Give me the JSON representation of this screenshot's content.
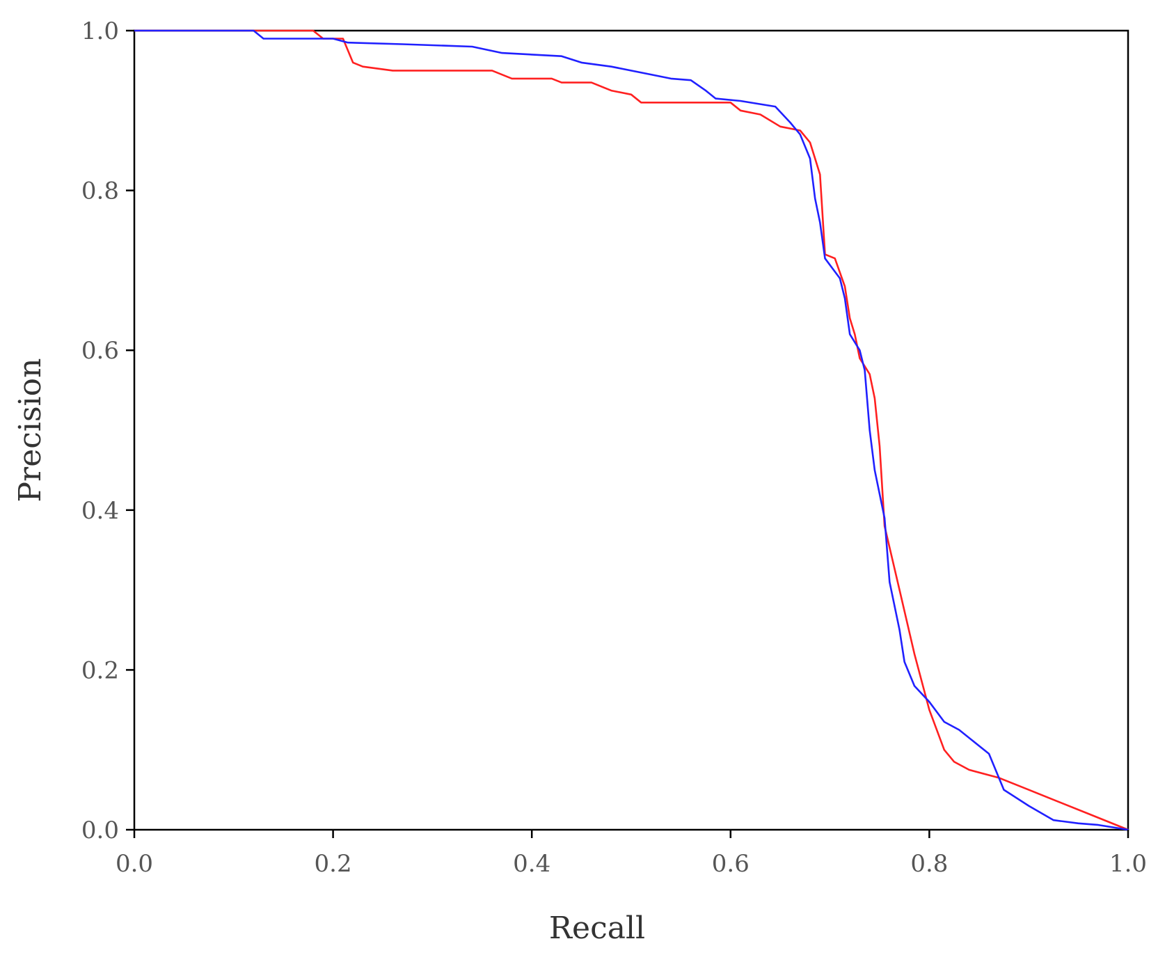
{
  "chart_data": {
    "type": "line",
    "title": "",
    "xlabel": "Recall",
    "ylabel": "Precision",
    "xlim": [
      0,
      1
    ],
    "ylim": [
      0,
      1
    ],
    "grid": false,
    "legend": "none",
    "x_ticks": [
      "0.0",
      "0.2",
      "0.4",
      "0.6",
      "0.8",
      "1.0"
    ],
    "y_ticks": [
      "0.0",
      "0.2",
      "0.4",
      "0.6",
      "0.8",
      "1.0"
    ],
    "series": [
      {
        "color": "#ff2020",
        "points": [
          [
            0.0,
            1.0
          ],
          [
            0.18,
            1.0
          ],
          [
            0.19,
            0.99
          ],
          [
            0.21,
            0.99
          ],
          [
            0.22,
            0.96
          ],
          [
            0.23,
            0.955
          ],
          [
            0.26,
            0.95
          ],
          [
            0.36,
            0.95
          ],
          [
            0.38,
            0.94
          ],
          [
            0.42,
            0.94
          ],
          [
            0.43,
            0.935
          ],
          [
            0.46,
            0.935
          ],
          [
            0.48,
            0.925
          ],
          [
            0.5,
            0.92
          ],
          [
            0.51,
            0.91
          ],
          [
            0.6,
            0.91
          ],
          [
            0.61,
            0.9
          ],
          [
            0.63,
            0.895
          ],
          [
            0.65,
            0.88
          ],
          [
            0.67,
            0.875
          ],
          [
            0.68,
            0.86
          ],
          [
            0.685,
            0.84
          ],
          [
            0.69,
            0.82
          ],
          [
            0.695,
            0.72
          ],
          [
            0.705,
            0.715
          ],
          [
            0.715,
            0.68
          ],
          [
            0.72,
            0.64
          ],
          [
            0.725,
            0.62
          ],
          [
            0.73,
            0.59
          ],
          [
            0.74,
            0.57
          ],
          [
            0.745,
            0.54
          ],
          [
            0.75,
            0.48
          ],
          [
            0.755,
            0.38
          ],
          [
            0.77,
            0.3
          ],
          [
            0.785,
            0.22
          ],
          [
            0.8,
            0.15
          ],
          [
            0.815,
            0.1
          ],
          [
            0.825,
            0.085
          ],
          [
            0.84,
            0.075
          ],
          [
            0.87,
            0.065
          ],
          [
            0.9,
            0.05
          ],
          [
            0.93,
            0.035
          ],
          [
            0.96,
            0.02
          ],
          [
            1.0,
            0.0
          ]
        ]
      },
      {
        "color": "#2020ff",
        "points": [
          [
            0.0,
            1.0
          ],
          [
            0.12,
            1.0
          ],
          [
            0.13,
            0.99
          ],
          [
            0.2,
            0.99
          ],
          [
            0.215,
            0.985
          ],
          [
            0.27,
            0.983
          ],
          [
            0.34,
            0.98
          ],
          [
            0.37,
            0.972
          ],
          [
            0.4,
            0.97
          ],
          [
            0.43,
            0.968
          ],
          [
            0.45,
            0.96
          ],
          [
            0.48,
            0.955
          ],
          [
            0.52,
            0.945
          ],
          [
            0.54,
            0.94
          ],
          [
            0.56,
            0.938
          ],
          [
            0.575,
            0.925
          ],
          [
            0.585,
            0.915
          ],
          [
            0.61,
            0.912
          ],
          [
            0.645,
            0.905
          ],
          [
            0.66,
            0.885
          ],
          [
            0.67,
            0.87
          ],
          [
            0.68,
            0.84
          ],
          [
            0.685,
            0.79
          ],
          [
            0.69,
            0.76
          ],
          [
            0.695,
            0.715
          ],
          [
            0.71,
            0.69
          ],
          [
            0.715,
            0.665
          ],
          [
            0.72,
            0.62
          ],
          [
            0.73,
            0.6
          ],
          [
            0.735,
            0.575
          ],
          [
            0.74,
            0.5
          ],
          [
            0.745,
            0.45
          ],
          [
            0.755,
            0.39
          ],
          [
            0.76,
            0.31
          ],
          [
            0.77,
            0.25
          ],
          [
            0.775,
            0.21
          ],
          [
            0.785,
            0.18
          ],
          [
            0.8,
            0.16
          ],
          [
            0.815,
            0.135
          ],
          [
            0.83,
            0.125
          ],
          [
            0.86,
            0.095
          ],
          [
            0.875,
            0.05
          ],
          [
            0.9,
            0.03
          ],
          [
            0.925,
            0.012
          ],
          [
            0.95,
            0.008
          ],
          [
            0.97,
            0.006
          ],
          [
            1.0,
            0.0
          ]
        ]
      }
    ]
  }
}
